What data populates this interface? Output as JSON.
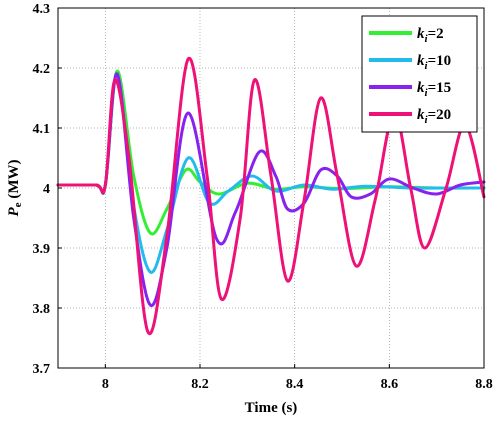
{
  "chart_data": {
    "type": "line",
    "xlabel": "Time (s)",
    "ylabel_main": "P",
    "ylabel_sub": "e",
    "ylabel_unit": " (MW)",
    "xlim": [
      7.9,
      8.8
    ],
    "ylim": [
      3.7,
      4.3
    ],
    "x_ticks": [
      8,
      8.2,
      8.4,
      8.6,
      8.8
    ],
    "x_tick_labels": [
      "8",
      "8.2",
      "8.4",
      "8.6",
      "8.8"
    ],
    "y_ticks": [
      3.7,
      3.8,
      3.9,
      4,
      4.1,
      4.2,
      4.3
    ],
    "y_tick_labels": [
      "3.7",
      "3.8",
      "3.9",
      "4",
      "4.1",
      "4.2",
      "4.3"
    ],
    "grid": true,
    "legend_position": "top-right",
    "series": [
      {
        "name": "ki=2",
        "legend_main": "k",
        "legend_sub": "i",
        "legend_value": "=2",
        "color": "#33ee33",
        "points": [
          [
            7.9,
            4.005
          ],
          [
            7.98,
            4.005
          ],
          [
            8.0,
            4.005
          ],
          [
            8.025,
            4.195
          ],
          [
            8.06,
            4.02
          ],
          [
            8.095,
            3.925
          ],
          [
            8.13,
            3.965
          ],
          [
            8.17,
            4.03
          ],
          [
            8.2,
            4.01
          ],
          [
            8.24,
            3.99
          ],
          [
            8.3,
            4.008
          ],
          [
            8.36,
            3.998
          ],
          [
            8.42,
            4.002
          ],
          [
            8.5,
            3.999
          ],
          [
            8.6,
            4.002
          ],
          [
            8.7,
            4.0
          ],
          [
            8.8,
            4.0
          ]
        ]
      },
      {
        "name": "ki=10",
        "legend_main": "k",
        "legend_sub": "i",
        "legend_value": "=10",
        "color": "#22bbee",
        "points": [
          [
            7.9,
            4.005
          ],
          [
            7.98,
            4.005
          ],
          [
            8.0,
            4.005
          ],
          [
            8.025,
            4.19
          ],
          [
            8.06,
            3.97
          ],
          [
            8.095,
            3.86
          ],
          [
            8.13,
            3.93
          ],
          [
            8.175,
            4.05
          ],
          [
            8.22,
            3.975
          ],
          [
            8.26,
            3.995
          ],
          [
            8.31,
            4.02
          ],
          [
            8.36,
            3.995
          ],
          [
            8.42,
            4.005
          ],
          [
            8.48,
            3.998
          ],
          [
            8.55,
            4.003
          ],
          [
            8.65,
            4.0
          ],
          [
            8.75,
            4.0
          ],
          [
            8.8,
            4.0
          ]
        ]
      },
      {
        "name": "ki=15",
        "legend_main": "k",
        "legend_sub": "i",
        "legend_value": "=15",
        "color": "#8822ee",
        "points": [
          [
            7.9,
            4.005
          ],
          [
            7.98,
            4.005
          ],
          [
            8.0,
            4.005
          ],
          [
            8.025,
            4.19
          ],
          [
            8.06,
            3.95
          ],
          [
            8.095,
            3.805
          ],
          [
            8.13,
            3.9
          ],
          [
            8.175,
            4.125
          ],
          [
            8.235,
            3.915
          ],
          [
            8.275,
            3.96
          ],
          [
            8.325,
            4.06
          ],
          [
            8.36,
            4.02
          ],
          [
            8.385,
            3.965
          ],
          [
            8.42,
            3.975
          ],
          [
            8.455,
            4.03
          ],
          [
            8.49,
            4.02
          ],
          [
            8.52,
            3.985
          ],
          [
            8.56,
            3.99
          ],
          [
            8.6,
            4.015
          ],
          [
            8.65,
            4.0
          ],
          [
            8.7,
            3.99
          ],
          [
            8.75,
            4.005
          ],
          [
            8.8,
            4.01
          ]
        ]
      },
      {
        "name": "ki=20",
        "legend_main": "k",
        "legend_sub": "i",
        "legend_value": "=20",
        "color": "#ee1177",
        "points": [
          [
            7.9,
            4.005
          ],
          [
            7.98,
            4.005
          ],
          [
            8.0,
            4.005
          ],
          [
            8.02,
            4.18
          ],
          [
            8.05,
            4.05
          ],
          [
            8.09,
            3.76
          ],
          [
            8.13,
            3.92
          ],
          [
            8.175,
            4.215
          ],
          [
            8.215,
            4.02
          ],
          [
            8.245,
            3.815
          ],
          [
            8.285,
            3.95
          ],
          [
            8.315,
            4.18
          ],
          [
            8.35,
            4.02
          ],
          [
            8.385,
            3.845
          ],
          [
            8.42,
            3.98
          ],
          [
            8.455,
            4.15
          ],
          [
            8.49,
            4.02
          ],
          [
            8.53,
            3.87
          ],
          [
            8.57,
            3.98
          ],
          [
            8.61,
            4.125
          ],
          [
            8.645,
            4.0
          ],
          [
            8.675,
            3.9
          ],
          [
            8.72,
            4.0
          ],
          [
            8.76,
            4.105
          ],
          [
            8.8,
            3.985
          ]
        ]
      }
    ]
  }
}
